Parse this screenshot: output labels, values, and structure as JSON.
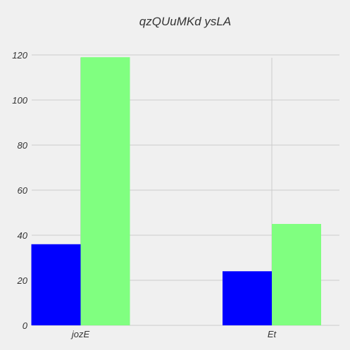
{
  "chart_data": {
    "type": "bar",
    "title": "qzQUuMKd  ysLA",
    "xlabel": "",
    "ylabel": "",
    "categories": [
      "jozE",
      "Et"
    ],
    "series": [
      {
        "values": [
          36,
          24
        ],
        "color": "#0000ff"
      },
      {
        "values": [
          119,
          45
        ],
        "color": "#80ff80"
      }
    ],
    "ylim": [
      0,
      120
    ],
    "yticks": [
      0,
      20,
      40,
      60,
      80,
      100,
      120
    ],
    "grid": true
  }
}
